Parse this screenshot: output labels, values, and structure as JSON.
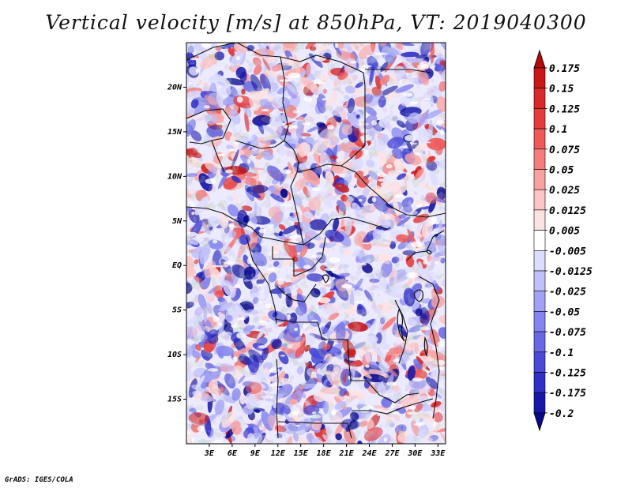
{
  "title": "Vertical velocity [m/s] at 850hPa, VT: 2019040300",
  "footer": "GrADS: IGES/COLA",
  "map": {
    "type": "heatmap",
    "lon_range": [
      0,
      34
    ],
    "lat_range": [
      -20,
      25
    ],
    "lat_ticks": [
      "20N",
      "15N",
      "10N",
      "5N",
      "EQ",
      "5S",
      "10S",
      "15S"
    ],
    "lon_ticks": [
      "3E",
      "6E",
      "9E",
      "12E",
      "15E",
      "18E",
      "21E",
      "24E",
      "27E",
      "30E",
      "33E"
    ]
  },
  "colorbar": {
    "levels": [
      "0.175",
      "0.15",
      "0.125",
      "0.1",
      "0.075",
      "0.05",
      "0.025",
      "0.0125",
      "0.005",
      "-0.005",
      "-0.0125",
      "-0.025",
      "-0.05",
      "-0.075",
      "-0.1",
      "-0.125",
      "-0.175",
      "-0.2"
    ],
    "colors": [
      "#b40a0a",
      "#c81818",
      "#d82a2a",
      "#e43c3c",
      "#ee5a5a",
      "#f47e7e",
      "#f9a2a2",
      "#fcc4c4",
      "#fde2e2",
      "#ffffff",
      "#dcdcff",
      "#c0c0fb",
      "#a2a2f5",
      "#8585ee",
      "#6868e4",
      "#4a4ad6",
      "#3030c4",
      "#1818a8",
      "#08088c"
    ]
  }
}
